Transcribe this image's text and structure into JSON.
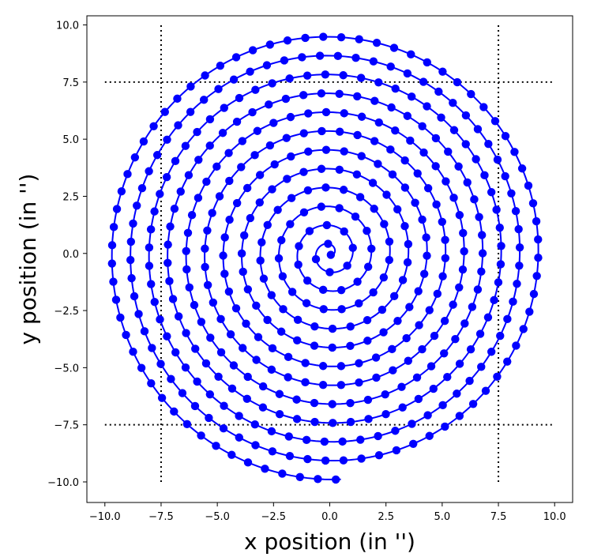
{
  "chart_data": {
    "type": "scatter",
    "title": "",
    "xlabel": "x position (in '')",
    "ylabel": "y position (in '')",
    "xlim": [
      -10.8,
      10.8
    ],
    "ylim": [
      -10.9,
      10.4
    ],
    "xticks": [
      -10.0,
      -7.5,
      -5.0,
      -2.5,
      0.0,
      2.5,
      5.0,
      7.5,
      10.0
    ],
    "xtick_labels": [
      "−10.0",
      "−7.5",
      "−5.0",
      "−2.5",
      "0.0",
      "2.5",
      "5.0",
      "7.5",
      "10.0"
    ],
    "yticks": [
      -10.0,
      -7.5,
      -5.0,
      -2.5,
      0.0,
      2.5,
      5.0,
      7.5,
      10.0
    ],
    "ytick_labels": [
      "−10.0",
      "−7.5",
      "−5.0",
      "−2.5",
      "0.0",
      "2.5",
      "5.0",
      "7.5",
      "10.0"
    ],
    "grid": false,
    "series": [
      {
        "kind": "spiral",
        "color": "#0000ff",
        "marker": "circle",
        "turns": 12,
        "r_start": 0,
        "r_end": 9.9,
        "point_spacing": 0.8
      }
    ],
    "reference_lines": [
      {
        "orientation": "vertical",
        "value": -7.5,
        "range": [
          -10.0,
          10.0
        ],
        "style": "dotted",
        "color": "#000000"
      },
      {
        "orientation": "vertical",
        "value": 7.5,
        "range": [
          -10.0,
          10.0
        ],
        "style": "dotted",
        "color": "#000000"
      },
      {
        "orientation": "horizontal",
        "value": 7.5,
        "range": [
          -10.0,
          10.0
        ],
        "style": "dotted",
        "color": "#000000"
      },
      {
        "orientation": "horizontal",
        "value": -7.5,
        "range": [
          -10.0,
          10.0
        ],
        "style": "dotted",
        "color": "#000000"
      }
    ]
  }
}
